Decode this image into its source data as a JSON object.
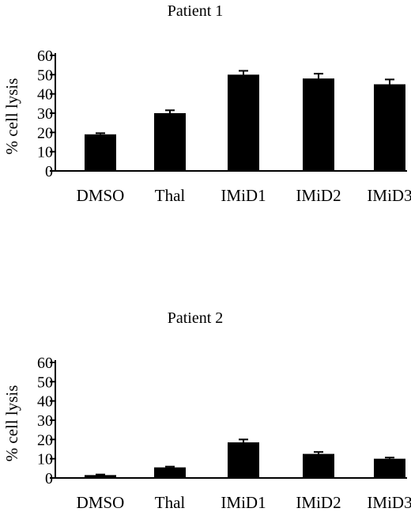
{
  "chart_data": [
    {
      "type": "bar",
      "title": "Patient 1",
      "ylabel": "% cell lysis",
      "xlabel": "",
      "categories": [
        "DMSO",
        "Thal",
        "IMiD1",
        "IMiD2",
        "IMiD3"
      ],
      "values": [
        19,
        30,
        50,
        48,
        45
      ],
      "errors": [
        0.6,
        1.5,
        2.0,
        2.5,
        2.5
      ],
      "ylim": [
        0,
        60
      ],
      "yticks": [
        "0",
        "10",
        "20",
        "30",
        "40",
        "50",
        "60"
      ],
      "bar_color": "#000000",
      "grid": false,
      "legend": "none"
    },
    {
      "type": "bar",
      "title": "Patient 2",
      "ylabel": "% cell lysis",
      "xlabel": "",
      "categories": [
        "DMSO",
        "Thal",
        "IMiD1",
        "IMiD2",
        "IMiD3"
      ],
      "values": [
        1.5,
        5.5,
        18.5,
        12.5,
        10
      ],
      "errors": [
        0.3,
        0.4,
        1.5,
        1.0,
        0.6
      ],
      "ylim": [
        0,
        60
      ],
      "yticks": [
        "0",
        "10",
        "20",
        "30",
        "40",
        "50",
        "60"
      ],
      "bar_color": "#000000",
      "grid": false,
      "legend": "none"
    }
  ]
}
